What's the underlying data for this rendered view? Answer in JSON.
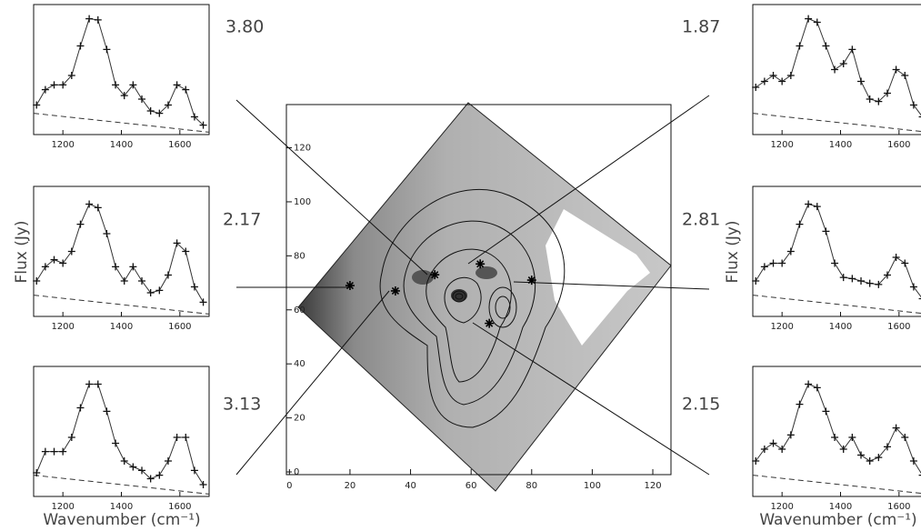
{
  "spectra": {
    "x": [
      1110,
      1140,
      1170,
      1200,
      1230,
      1260,
      1290,
      1320,
      1350,
      1380,
      1410,
      1440,
      1470,
      1500,
      1530,
      1560,
      1590,
      1620,
      1650,
      1680
    ],
    "xlim": [
      1100,
      1700
    ],
    "ylim": [
      0,
      1.1
    ],
    "xticks": [
      1200,
      1400,
      1600
    ],
    "y_label": "Flux (Jy)",
    "x_label": "Wavenumber (cm⁻¹)",
    "panels": [
      {
        "ratio": "3.80",
        "values": [
          0.25,
          0.38,
          0.42,
          0.42,
          0.5,
          0.75,
          0.98,
          0.97,
          0.72,
          0.42,
          0.33,
          0.42,
          0.3,
          0.2,
          0.18,
          0.25,
          0.42,
          0.38,
          0.15,
          0.08
        ]
      },
      {
        "ratio": "1.87",
        "values": [
          0.4,
          0.45,
          0.5,
          0.45,
          0.5,
          0.75,
          0.98,
          0.95,
          0.75,
          0.55,
          0.6,
          0.72,
          0.45,
          0.3,
          0.28,
          0.35,
          0.55,
          0.5,
          0.25,
          0.15
        ]
      },
      {
        "ratio": "2.17",
        "values": [
          0.3,
          0.42,
          0.48,
          0.45,
          0.55,
          0.78,
          0.95,
          0.92,
          0.7,
          0.42,
          0.3,
          0.42,
          0.3,
          0.2,
          0.22,
          0.35,
          0.62,
          0.55,
          0.25,
          0.12
        ]
      },
      {
        "ratio": "2.81",
        "values": [
          0.3,
          0.42,
          0.45,
          0.45,
          0.55,
          0.78,
          0.95,
          0.93,
          0.72,
          0.45,
          0.33,
          0.32,
          0.3,
          0.28,
          0.27,
          0.35,
          0.5,
          0.45,
          0.25,
          0.15
        ]
      },
      {
        "ratio": "3.13",
        "values": [
          0.2,
          0.38,
          0.38,
          0.38,
          0.5,
          0.75,
          0.95,
          0.95,
          0.72,
          0.45,
          0.3,
          0.25,
          0.22,
          0.15,
          0.18,
          0.3,
          0.5,
          0.5,
          0.22,
          0.1
        ]
      },
      {
        "ratio": "2.15",
        "values": [
          0.3,
          0.4,
          0.45,
          0.4,
          0.52,
          0.78,
          0.95,
          0.92,
          0.72,
          0.5,
          0.4,
          0.5,
          0.35,
          0.3,
          0.33,
          0.42,
          0.58,
          0.5,
          0.3,
          0.18
        ]
      }
    ]
  },
  "map": {
    "xlim": [
      -1,
      126
    ],
    "ylim": [
      -1,
      136
    ],
    "xticks": [
      0,
      20,
      40,
      60,
      80,
      100,
      120
    ],
    "yticks": [
      0,
      20,
      40,
      60,
      80,
      100,
      120
    ],
    "stars": [
      {
        "x": 20,
        "y": 69
      },
      {
        "x": 35,
        "y": 67
      },
      {
        "x": 48,
        "y": 73
      },
      {
        "x": 63,
        "y": 77
      },
      {
        "x": 80,
        "y": 71
      },
      {
        "x": 66,
        "y": 55
      }
    ]
  }
}
